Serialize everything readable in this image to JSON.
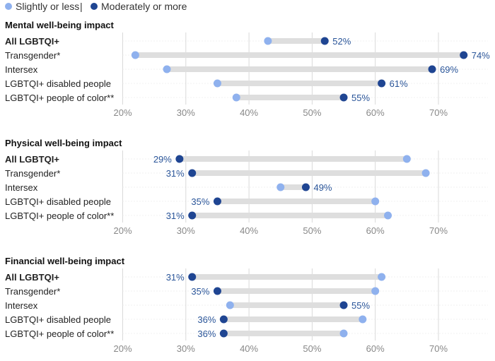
{
  "legend": {
    "items": [
      {
        "label": "Slightly or less",
        "color": "#8fb1ee"
      },
      {
        "label": "Moderately or more",
        "color": "#1f4592"
      }
    ],
    "separator": "|"
  },
  "chart_data": [
    {
      "type": "dumbbell",
      "title": "Mental well-being impact",
      "x_ticks": [
        "20%",
        "30%",
        "40%",
        "50%",
        "60%",
        "70%"
      ],
      "xlim": [
        20,
        75
      ],
      "series": [
        {
          "name": "Slightly or less",
          "color": "#8fb1ee"
        },
        {
          "name": "Moderately or more",
          "color": "#1f4592"
        }
      ],
      "rows": [
        {
          "category": "All LGBTQI+",
          "bold": true,
          "slightly": 43,
          "moderately": 52,
          "label": "52%",
          "label_side": "right"
        },
        {
          "category": "Transgender*",
          "bold": false,
          "slightly": 22,
          "moderately": 74,
          "label": "74%",
          "label_side": "right"
        },
        {
          "category": "Intersex",
          "bold": false,
          "slightly": 27,
          "moderately": 69,
          "label": "69%",
          "label_side": "right"
        },
        {
          "category": "LGBTQI+ disabled people",
          "bold": false,
          "slightly": 35,
          "moderately": 61,
          "label": "61%",
          "label_side": "right"
        },
        {
          "category": "LGBTQI+ people of color**",
          "bold": false,
          "slightly": 38,
          "moderately": 55,
          "label": "55%",
          "label_side": "right"
        }
      ]
    },
    {
      "type": "dumbbell",
      "title": "Physical well-being impact",
      "x_ticks": [
        "20%",
        "30%",
        "40%",
        "50%",
        "60%",
        "70%"
      ],
      "xlim": [
        20,
        75
      ],
      "series": [
        {
          "name": "Slightly or less",
          "color": "#8fb1ee"
        },
        {
          "name": "Moderately or more",
          "color": "#1f4592"
        }
      ],
      "rows": [
        {
          "category": "All LGBTQI+",
          "bold": true,
          "slightly": 65,
          "moderately": 29,
          "label": "29%",
          "label_side": "left"
        },
        {
          "category": "Transgender*",
          "bold": false,
          "slightly": 68,
          "moderately": 31,
          "label": "31%",
          "label_side": "left"
        },
        {
          "category": "Intersex",
          "bold": false,
          "slightly": 45,
          "moderately": 49,
          "label": "49%",
          "label_side": "right"
        },
        {
          "category": "LGBTQI+ disabled people",
          "bold": false,
          "slightly": 60,
          "moderately": 35,
          "label": "35%",
          "label_side": "left"
        },
        {
          "category": "LGBTQI+ people of color**",
          "bold": false,
          "slightly": 62,
          "moderately": 31,
          "label": "31%",
          "label_side": "left"
        }
      ]
    },
    {
      "type": "dumbbell",
      "title": "Financial well-being impact",
      "x_ticks": [
        "20%",
        "30%",
        "40%",
        "50%",
        "60%",
        "70%"
      ],
      "xlim": [
        20,
        75
      ],
      "series": [
        {
          "name": "Slightly or less",
          "color": "#8fb1ee"
        },
        {
          "name": "Moderately or more",
          "color": "#1f4592"
        }
      ],
      "rows": [
        {
          "category": "All LGBTQI+",
          "bold": true,
          "slightly": 61,
          "moderately": 31,
          "label": "31%",
          "label_side": "left"
        },
        {
          "category": "Transgender*",
          "bold": false,
          "slightly": 60,
          "moderately": 35,
          "label": "35%",
          "label_side": "left"
        },
        {
          "category": "Intersex",
          "bold": false,
          "slightly": 37,
          "moderately": 55,
          "label": "55%",
          "label_side": "right"
        },
        {
          "category": "LGBTQI+ disabled people",
          "bold": false,
          "slightly": 58,
          "moderately": 36,
          "label": "36%",
          "label_side": "left"
        },
        {
          "category": "LGBTQI+ people of color**",
          "bold": false,
          "slightly": 55,
          "moderately": 36,
          "label": "36%",
          "label_side": "left"
        }
      ]
    }
  ]
}
